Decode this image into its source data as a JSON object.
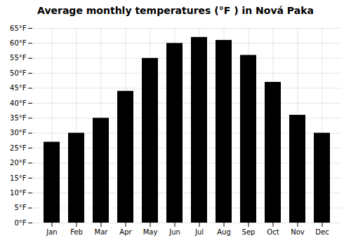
{
  "chart_data": {
    "type": "bar",
    "title": "Average monthly temperatures (°F ) in Nová Paka",
    "categories": [
      "Jan",
      "Feb",
      "Mar",
      "Apr",
      "May",
      "Jun",
      "Jul",
      "Aug",
      "Sep",
      "Oct",
      "Nov",
      "Dec"
    ],
    "values": [
      27,
      30,
      35,
      44,
      55,
      60,
      62,
      61,
      56,
      47,
      36,
      30
    ],
    "ylim": [
      0,
      65
    ],
    "yticks": [
      {
        "value": 0,
        "label": "0°F"
      },
      {
        "value": 5,
        "label": "5°F"
      },
      {
        "value": 10,
        "label": "10°F"
      },
      {
        "value": 15,
        "label": "15°F"
      },
      {
        "value": 20,
        "label": "20°F"
      },
      {
        "value": 25,
        "label": "25°F"
      },
      {
        "value": 30,
        "label": "30°F"
      },
      {
        "value": 35,
        "label": "35°F"
      },
      {
        "value": 40,
        "label": "40°F"
      },
      {
        "value": 45,
        "label": "45°F"
      },
      {
        "value": 50,
        "label": "50°F"
      },
      {
        "value": 55,
        "label": "55°F"
      },
      {
        "value": 60,
        "label": "60°F"
      },
      {
        "value": 65,
        "label": "65°F"
      }
    ],
    "grid": true
  }
}
